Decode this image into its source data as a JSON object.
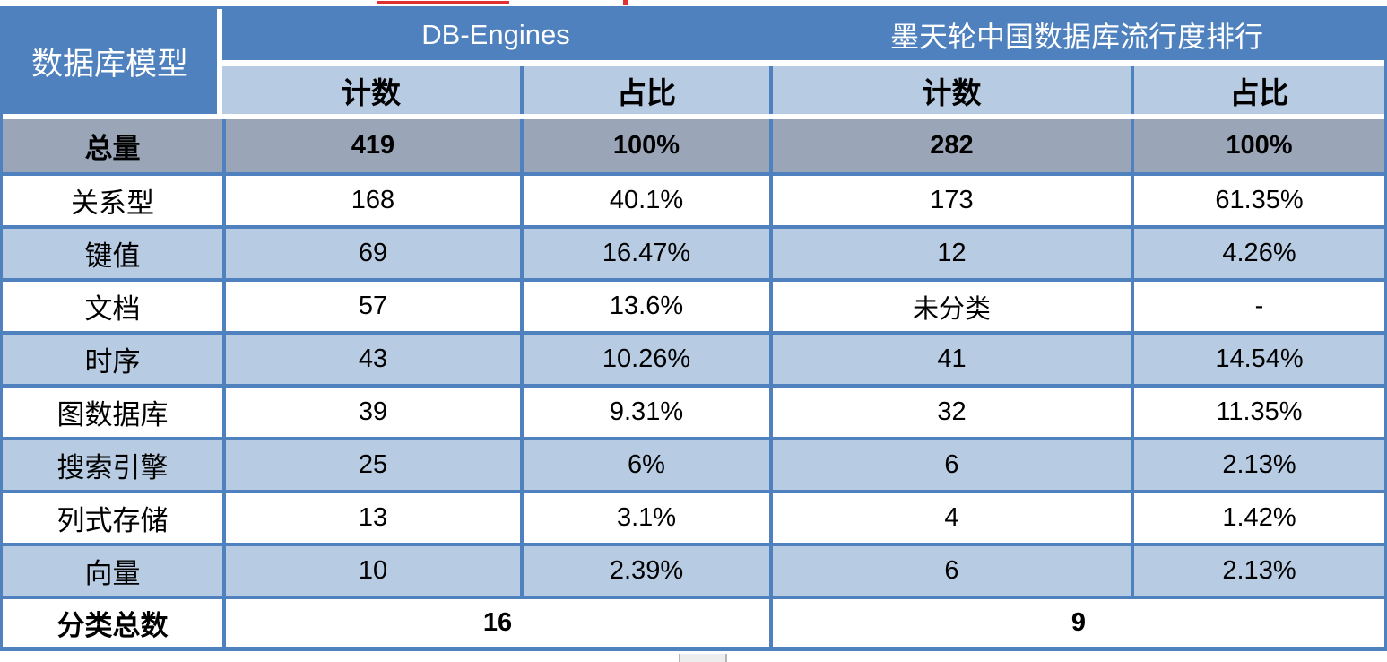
{
  "colors": {
    "header_blue": "#4E81BD",
    "band_light_blue": "#B7CBE2",
    "total_row_gray": "#9AA5B8",
    "border_blue": "#4E81BD",
    "header_text": "#FFFFFF",
    "body_text": "#000000",
    "artifact_red": "#E03030"
  },
  "chart_data": {
    "type": "table",
    "corner_header": "数据库模型",
    "section_headers": [
      "DB-Engines",
      "墨天轮中国数据库流行度排行"
    ],
    "sub_headers": [
      "计数",
      "占比",
      "计数",
      "占比"
    ],
    "rows": [
      {
        "label": "总量",
        "values": [
          "419",
          "100%",
          "282",
          "100%"
        ]
      },
      {
        "label": "关系型",
        "values": [
          "168",
          "40.1%",
          "173",
          "61.35%"
        ]
      },
      {
        "label": "键值",
        "values": [
          "69",
          "16.47%",
          "12",
          "4.26%"
        ]
      },
      {
        "label": "文档",
        "values": [
          "57",
          "13.6%",
          "未分类",
          "-"
        ]
      },
      {
        "label": "时序",
        "values": [
          "43",
          "10.26%",
          "41",
          "14.54%"
        ]
      },
      {
        "label": "图数据库",
        "values": [
          "39",
          "9.31%",
          "32",
          "11.35%"
        ]
      },
      {
        "label": "搜索引擎",
        "values": [
          "25",
          "6%",
          "6",
          "2.13%"
        ]
      },
      {
        "label": "列式存储",
        "values": [
          "13",
          "3.1%",
          "4",
          "1.42%"
        ]
      },
      {
        "label": "向量",
        "values": [
          "10",
          "2.39%",
          "6",
          "2.13%"
        ]
      }
    ],
    "footer": {
      "label": "分类总数",
      "values": [
        "16",
        "9"
      ]
    }
  }
}
